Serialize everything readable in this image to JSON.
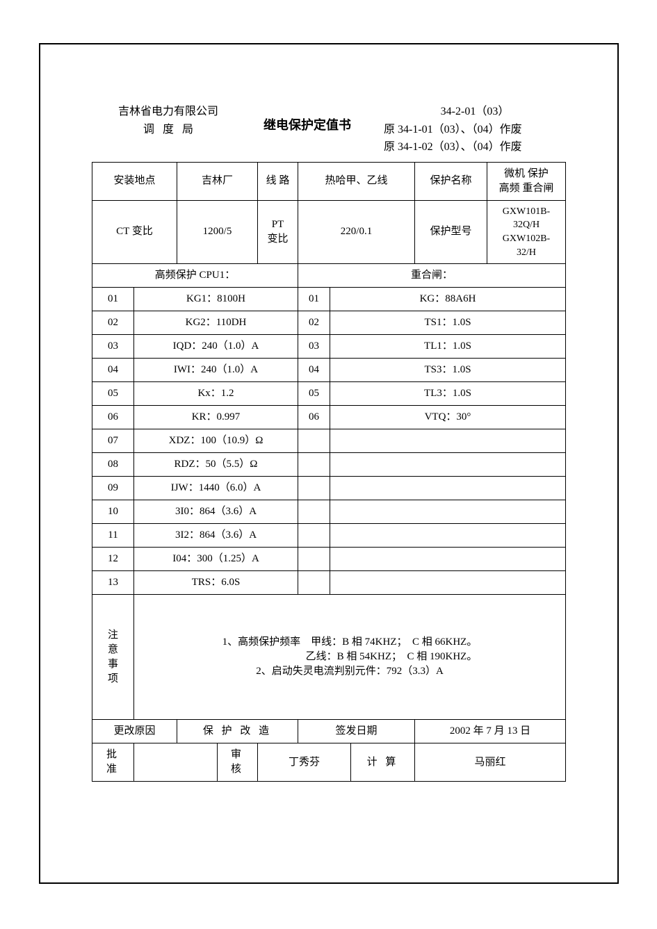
{
  "header": {
    "company": "吉林省电力有限公司",
    "bureau": "调度局",
    "title": "继电保护定值书",
    "code": "34-2-01（03）",
    "obsolete1": "原 34-1-01（03）、（04）作废",
    "obsolete2": "原 34-1-02（03）、（04）作废"
  },
  "info1": {
    "install_loc_label": "安装地点",
    "install_loc": "吉林厂",
    "line_label": "线  路",
    "line": "热哈甲、乙线",
    "protect_name_label": "保护名称",
    "protect_name": "微机  保护\n高频  重合闸"
  },
  "info2": {
    "ct_label": "CT 变比",
    "ct": "1200/5",
    "pt_label": "PT\n变比",
    "pt": "220/0.1",
    "model_label": "保护型号",
    "model": "GXW101B-32Q/H\nGXW102B-32/H"
  },
  "sections": {
    "left_head": "高频保护 CPU1：",
    "right_head": "重合闸："
  },
  "left_rows": [
    {
      "n": "01",
      "v": "KG1：8100H"
    },
    {
      "n": "02",
      "v": "KG2：110DH"
    },
    {
      "n": "03",
      "v": "IQD：240（1.0）A"
    },
    {
      "n": "04",
      "v": "IWI：240（1.0）A"
    },
    {
      "n": "05",
      "v": "Kx：1.2"
    },
    {
      "n": "06",
      "v": "KR：0.997"
    },
    {
      "n": "07",
      "v": "XDZ：100（10.9）Ω"
    },
    {
      "n": "08",
      "v": "RDZ：50（5.5）Ω"
    },
    {
      "n": "09",
      "v": "IJW：1440（6.0）A"
    },
    {
      "n": "10",
      "v": "3I0：864（3.6）A"
    },
    {
      "n": "11",
      "v": "3I2：864（3.6）A"
    },
    {
      "n": "12",
      "v": "I04：300（1.25）A"
    },
    {
      "n": "13",
      "v": "TRS：6.0S"
    }
  ],
  "right_rows": [
    {
      "n": "01",
      "v": "KG：88A6H"
    },
    {
      "n": "02",
      "v": "TS1：1.0S"
    },
    {
      "n": "03",
      "v": "TL1：1.0S"
    },
    {
      "n": "04",
      "v": "TS3：1.0S"
    },
    {
      "n": "05",
      "v": "TL3：1.0S"
    },
    {
      "n": "06",
      "v": "VTQ：30°"
    },
    {
      "n": "",
      "v": ""
    },
    {
      "n": "",
      "v": ""
    },
    {
      "n": "",
      "v": ""
    },
    {
      "n": "",
      "v": ""
    },
    {
      "n": "",
      "v": ""
    },
    {
      "n": "",
      "v": ""
    },
    {
      "n": "",
      "v": ""
    }
  ],
  "notes": {
    "label": "注\n意\n事\n项",
    "line1": "1、高频保护频率　甲线：B 相 74KHZ；　C 相 66KHZ。",
    "line2": "　　　　　　　　乙线：B 相 54KHZ；　C 相 190KHZ。",
    "line3": "2、启动失灵电流判别元件：792（3.3）A"
  },
  "footer": {
    "change_reason_label": "更改原因",
    "change_reason": "保  护  改  造",
    "issue_date_label": "签发日期",
    "issue_date": "2002 年 7 月 13 日",
    "approve_label": "批  准",
    "approve": "",
    "review_label": "审  核",
    "review": "丁秀芬",
    "calc_label": "计  算",
    "calc": "马丽红"
  }
}
